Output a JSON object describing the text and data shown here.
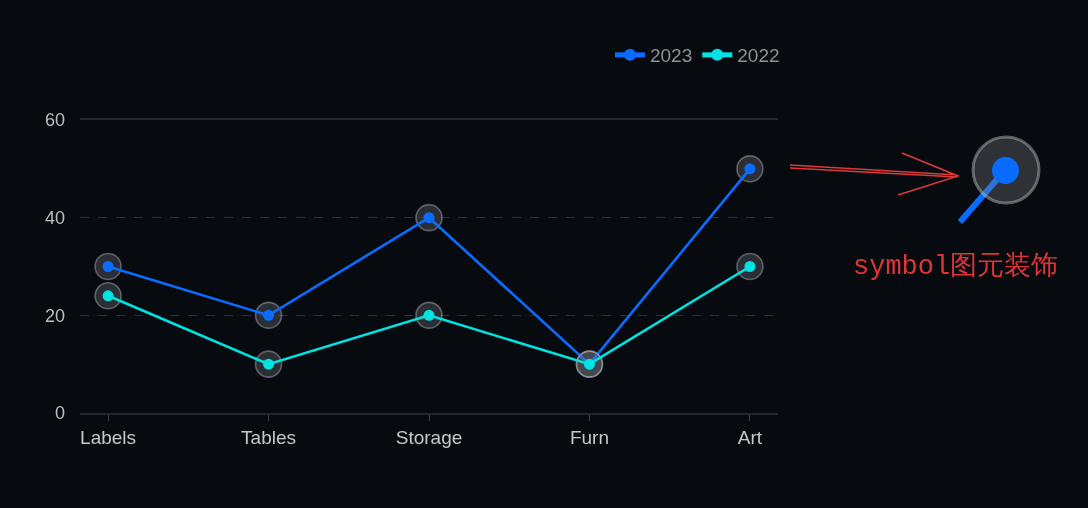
{
  "chart_data": {
    "type": "line",
    "categories": [
      "Labels",
      "Tables",
      "Storage",
      "Furn",
      "Art"
    ],
    "series": [
      {
        "name": "2023",
        "color": "#0a6cff",
        "values": [
          30,
          20,
          40,
          10,
          50
        ]
      },
      {
        "name": "2022",
        "color": "#00e3e3",
        "values": [
          24,
          10,
          20,
          10,
          30
        ]
      }
    ],
    "ylim": [
      0,
      60
    ],
    "yticks": [
      0,
      20,
      40,
      60
    ],
    "grid": "y",
    "legend": "top right",
    "marker": "circle",
    "line_style": "solid",
    "annotations": [
      "symbol图元装饰"
    ]
  }
}
